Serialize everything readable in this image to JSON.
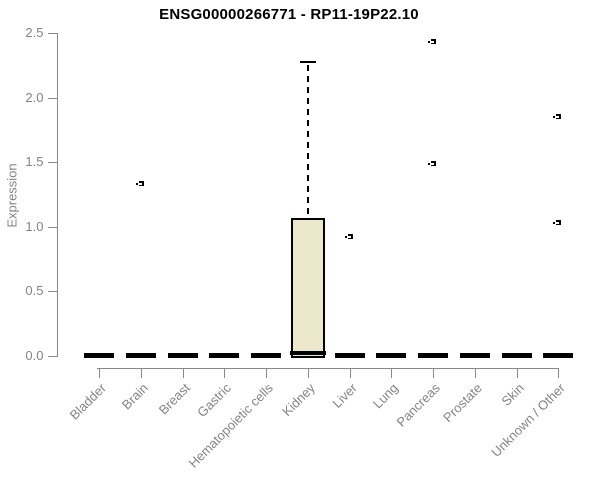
{
  "chart_data": {
    "type": "boxplot",
    "title": "ENSG00000266771 - RP11-19P22.10",
    "ylabel": "Expression",
    "xlabel": "",
    "ylim": [
      0,
      2.5
    ],
    "yticks": [
      0.0,
      0.5,
      1.0,
      1.5,
      2.0,
      2.5
    ],
    "ytick_labels": [
      "0.0",
      "0.5",
      "1.0",
      "1.5",
      "2.0",
      "2.5"
    ],
    "grid": "off",
    "legend": "none",
    "categories": [
      "Bladder",
      "Brain",
      "Breast",
      "Gastric",
      "Hematopoietic cells",
      "Kidney",
      "Liver",
      "Lung",
      "Pancreas",
      "Prostate",
      "Skin",
      "Unknown / Other"
    ],
    "boxes": [
      {
        "category": "Bladder",
        "median": 0,
        "q1": 0,
        "q3": 0,
        "whisker_low": 0,
        "whisker_high": 0,
        "outliers": []
      },
      {
        "category": "Brain",
        "median": 0,
        "q1": 0,
        "q3": 0,
        "whisker_low": 0,
        "whisker_high": 0,
        "outliers": [
          1.33
        ]
      },
      {
        "category": "Breast",
        "median": 0,
        "q1": 0,
        "q3": 0,
        "whisker_low": 0,
        "whisker_high": 0,
        "outliers": []
      },
      {
        "category": "Gastric",
        "median": 0,
        "q1": 0,
        "q3": 0,
        "whisker_low": 0,
        "whisker_high": 0,
        "outliers": []
      },
      {
        "category": "Hematopoietic cells",
        "median": 0,
        "q1": 0,
        "q3": 0,
        "whisker_low": 0,
        "whisker_high": 0,
        "outliers": []
      },
      {
        "category": "Kidney",
        "median": 0.02,
        "q1": 0,
        "q3": 1.07,
        "whisker_low": 0,
        "whisker_high": 2.28,
        "outliers": []
      },
      {
        "category": "Liver",
        "median": 0,
        "q1": 0,
        "q3": 0,
        "whisker_low": 0,
        "whisker_high": 0,
        "outliers": [
          0.92
        ]
      },
      {
        "category": "Lung",
        "median": 0,
        "q1": 0,
        "q3": 0,
        "whisker_low": 0,
        "whisker_high": 0,
        "outliers": []
      },
      {
        "category": "Pancreas",
        "median": 0,
        "q1": 0,
        "q3": 0,
        "whisker_low": 0,
        "whisker_high": 0,
        "outliers": [
          2.43,
          1.49
        ]
      },
      {
        "category": "Prostate",
        "median": 0,
        "q1": 0,
        "q3": 0,
        "whisker_low": 0,
        "whisker_high": 0,
        "outliers": []
      },
      {
        "category": "Skin",
        "median": 0,
        "q1": 0,
        "q3": 0,
        "whisker_low": 0,
        "whisker_high": 0,
        "outliers": []
      },
      {
        "category": "Unknown / Other",
        "median": 0,
        "q1": 0,
        "q3": 0,
        "whisker_low": 0,
        "whisker_high": 0,
        "outliers": [
          1.85,
          1.03
        ]
      }
    ],
    "colors": {
      "box_fill": "#ECE8CB",
      "box_border": "#000000",
      "median": "#000000",
      "outlier_marker": "#000000",
      "axis": "#898989",
      "tick_text": "#848484",
      "title_text": "#000000"
    },
    "marker_style": "small-black-square-with-white-notch"
  }
}
